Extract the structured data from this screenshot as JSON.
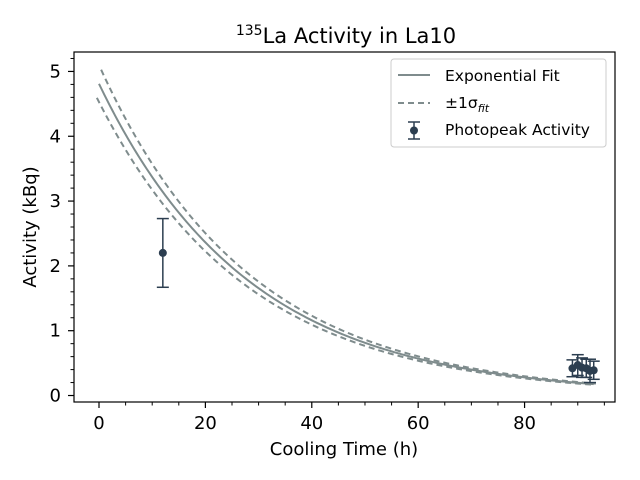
{
  "chart_data": {
    "type": "scatter",
    "title_sup": "135",
    "title_main": "La Activity in La10",
    "xlabel": "Cooling Time (h)",
    "ylabel": "Activity (kBq)",
    "xlim": [
      -4.7,
      97
    ],
    "ylim": [
      -0.1,
      5.3
    ],
    "x_ticks": [
      0,
      20,
      40,
      60,
      80
    ],
    "y_ticks": [
      0,
      1,
      2,
      3,
      4,
      5
    ],
    "x_minor_step": 5,
    "y_minor_step": 0.2,
    "grid": false,
    "legend_position": "top-right",
    "legend": {
      "fit_label": "Exponential Fit",
      "sigma_label": "±1σ",
      "sigma_subscript": "fit",
      "data_label": "Photopeak Activity"
    },
    "colors": {
      "fit": "#7f8c8d",
      "data": "#2c3e50"
    },
    "fit": {
      "name": "Exponential Fit",
      "A0": 4.81,
      "half_life_h": 19.5,
      "sigma_frac": 0.045,
      "x_start": 0,
      "x_end": 93
    },
    "series": [
      {
        "name": "Photopeak Activity",
        "points": [
          {
            "x": 12.0,
            "y": 2.2,
            "err": 0.53
          },
          {
            "x": 89.0,
            "y": 0.42,
            "err": 0.13
          },
          {
            "x": 90.0,
            "y": 0.47,
            "err": 0.16
          },
          {
            "x": 90.8,
            "y": 0.43,
            "err": 0.15
          },
          {
            "x": 91.6,
            "y": 0.42,
            "err": 0.14
          },
          {
            "x": 92.3,
            "y": 0.38,
            "err": 0.18
          },
          {
            "x": 93.0,
            "y": 0.39,
            "err": 0.14
          }
        ]
      }
    ]
  }
}
